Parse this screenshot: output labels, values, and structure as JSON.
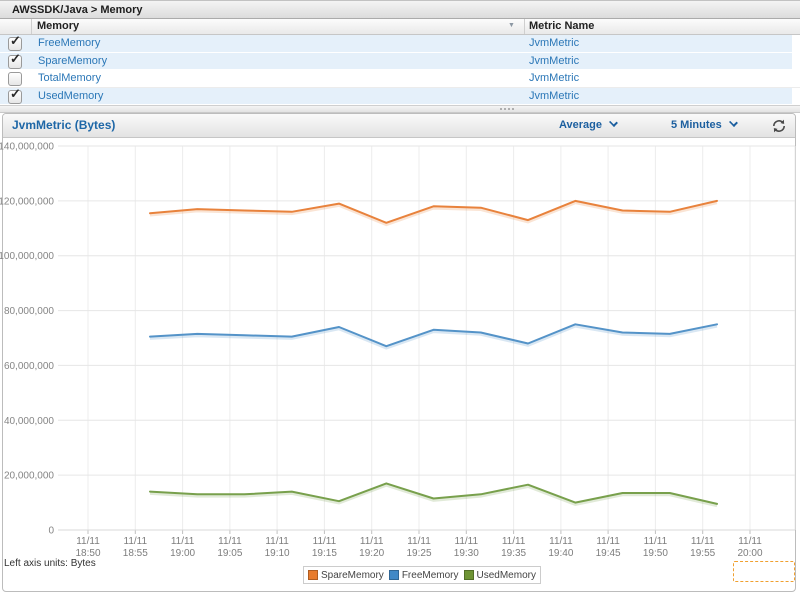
{
  "breadcrumb": "AWSSDK/Java > Memory",
  "table": {
    "columns": [
      "Memory",
      "Metric Name"
    ],
    "rows": [
      {
        "name": "FreeMemory",
        "metric": "JvmMetric",
        "checked": true
      },
      {
        "name": "SpareMemory",
        "metric": "JvmMetric",
        "checked": true
      },
      {
        "name": "TotalMemory",
        "metric": "JvmMetric",
        "checked": false
      },
      {
        "name": "UsedMemory",
        "metric": "JvmMetric",
        "checked": true
      }
    ]
  },
  "chart_panel": {
    "title": "JvmMetric (Bytes)",
    "statistic_dropdown": "Average",
    "period_dropdown": "5 Minutes",
    "refresh_icon": "refresh-icon",
    "left_axis_units_label": "Left axis units: Bytes"
  },
  "chart_data": {
    "type": "line",
    "title": "JvmMetric (Bytes)",
    "xlabel": "",
    "ylabel": "Bytes",
    "ylim": [
      0,
      140000000
    ],
    "grid": true,
    "legend_position": "bottom",
    "y_ticks": [
      0,
      20000000,
      40000000,
      60000000,
      80000000,
      100000000,
      120000000,
      140000000
    ],
    "x_tick_labels": [
      {
        "date": "11/11",
        "time": "18:50"
      },
      {
        "date": "11/11",
        "time": "18:55"
      },
      {
        "date": "11/11",
        "time": "19:00"
      },
      {
        "date": "11/11",
        "time": "19:05"
      },
      {
        "date": "11/11",
        "time": "19:10"
      },
      {
        "date": "11/11",
        "time": "19:15"
      },
      {
        "date": "11/11",
        "time": "19:20"
      },
      {
        "date": "11/11",
        "time": "19:25"
      },
      {
        "date": "11/11",
        "time": "19:30"
      },
      {
        "date": "11/11",
        "time": "19:35"
      },
      {
        "date": "11/11",
        "time": "19:40"
      },
      {
        "date": "11/11",
        "time": "19:45"
      },
      {
        "date": "11/11",
        "time": "19:50"
      },
      {
        "date": "11/11",
        "time": "19:55"
      },
      {
        "date": "11/11",
        "time": "20:00"
      }
    ],
    "x_point_times_estimated": [
      "18:56",
      "19:01",
      "19:06",
      "19:11",
      "19:16",
      "19:21",
      "19:26",
      "19:31",
      "19:36",
      "19:41",
      "19:46",
      "19:51",
      "19:56"
    ],
    "series": [
      {
        "name": "SpareMemory",
        "color": "#e8823c",
        "values": [
          115500000,
          117000000,
          116500000,
          116000000,
          119000000,
          112000000,
          118000000,
          117500000,
          113000000,
          120000000,
          116500000,
          116000000,
          120000000
        ]
      },
      {
        "name": "FreeMemory",
        "color": "#5493c8",
        "values": [
          70500000,
          71500000,
          71000000,
          70500000,
          74000000,
          67000000,
          73000000,
          72000000,
          68000000,
          75000000,
          72000000,
          71500000,
          75000000
        ]
      },
      {
        "name": "UsedMemory",
        "color": "#78a04c",
        "values": [
          14000000,
          13000000,
          13000000,
          14000000,
          10500000,
          17000000,
          11500000,
          13000000,
          16500000,
          10000000,
          13500000,
          13500000,
          9500000
        ]
      }
    ]
  },
  "legend": [
    {
      "label": "SpareMemory",
      "color": "#e87b2c"
    },
    {
      "label": "FreeMemory",
      "color": "#4189c7"
    },
    {
      "label": "UsedMemory",
      "color": "#6e9434"
    }
  ]
}
